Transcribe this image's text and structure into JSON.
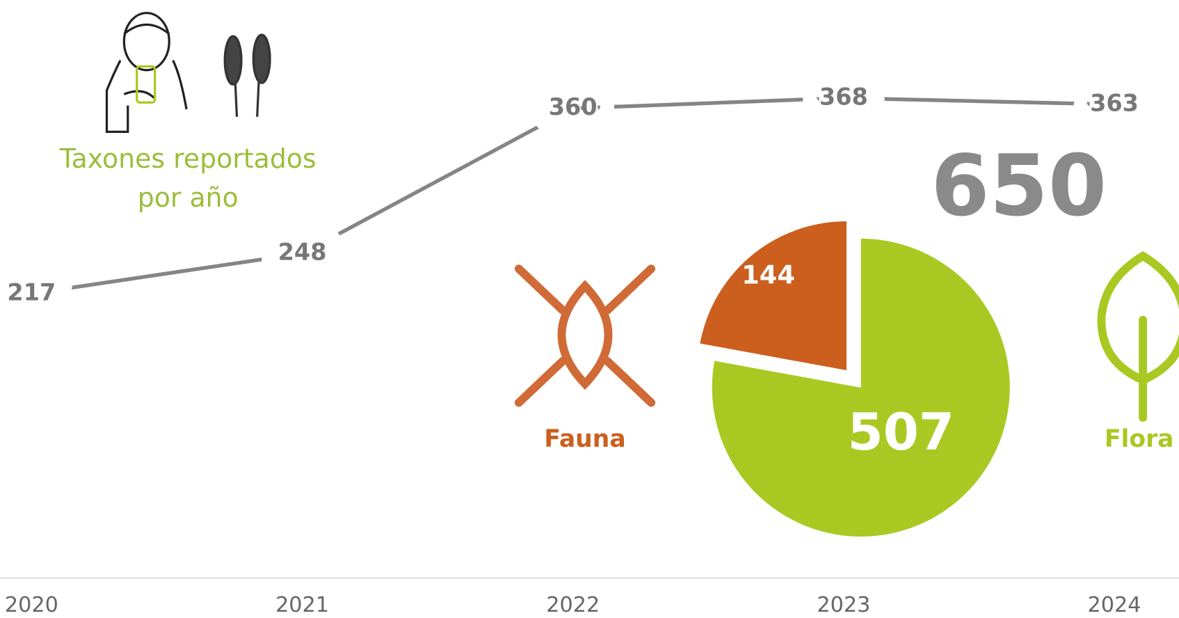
{
  "chart_data": [
    {
      "type": "line",
      "title": [
        "Taxones reportados",
        "por año"
      ],
      "categories": [
        "2020",
        "2021",
        "2022",
        "2023",
        "2024"
      ],
      "values": [
        217,
        248,
        360,
        368,
        363
      ],
      "color": "#858585"
    },
    {
      "type": "pie",
      "total": 650,
      "categories": [
        "Fauna",
        "Flora"
      ],
      "values": [
        144,
        507
      ],
      "colors": [
        "#cc5e1e",
        "#a9c922"
      ]
    }
  ]
}
